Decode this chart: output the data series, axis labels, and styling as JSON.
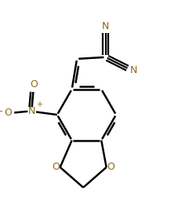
{
  "background_color": "#ffffff",
  "line_color": "#000000",
  "bond_width": 1.8,
  "N_color": "#8B6914",
  "O_color": "#8B6914",
  "figsize": [
    2.27,
    2.75
  ],
  "dpi": 100,
  "xlim": [
    0.0,
    1.0
  ],
  "ylim": [
    0.0,
    1.0
  ]
}
